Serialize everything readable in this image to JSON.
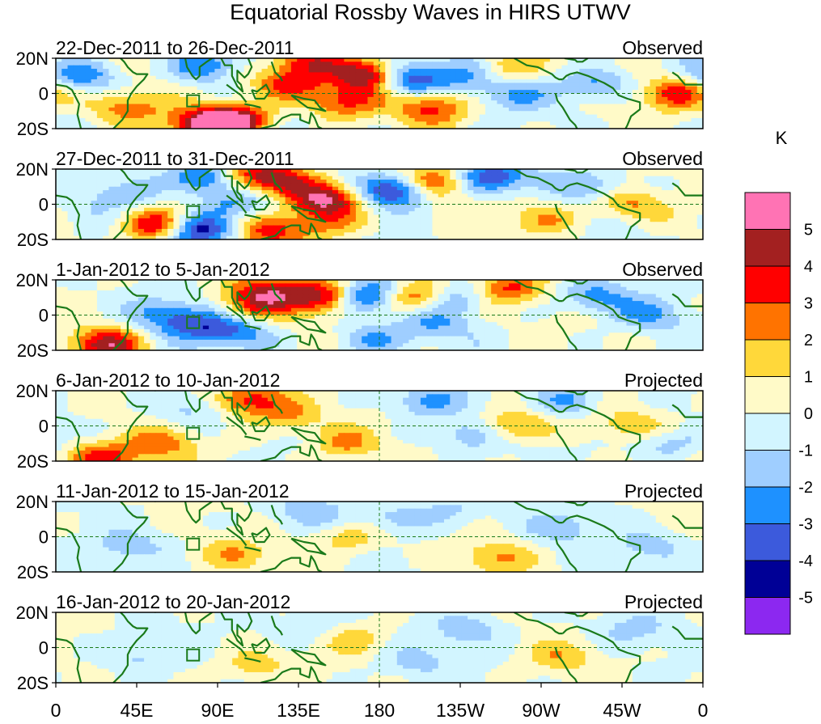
{
  "title": "Equatorial Rossby Waves in HIRS UTWV",
  "lat_labels": [
    "20N",
    "0",
    "20S"
  ],
  "lon_labels": [
    "0",
    "45E",
    "90E",
    "135E",
    "180",
    "135W",
    "90W",
    "45W",
    "0"
  ],
  "colorbar": {
    "unit": "K",
    "colors": [
      "#ff73b4",
      "#a32020",
      "#ff0000",
      "#ff7300",
      "#ffd83a",
      "#fffac8",
      "#d2f5ff",
      "#9fceff",
      "#1e91ff",
      "#3c5adc",
      "#000096",
      "#8c28f0"
    ],
    "tick_labels": [
      "5",
      "4",
      "3",
      "2",
      "1",
      "0",
      "-1",
      "-2",
      "-3",
      "-4",
      "-5"
    ]
  },
  "panels": [
    {
      "date_range": "22-Dec-2011 to 26-Dec-2011",
      "kind": "Observed",
      "amp": 1.0,
      "blobs": [
        [
          93,
          12,
          3.2
        ],
        [
          40,
          -8,
          2.5
        ],
        [
          160,
          -5,
          3.2
        ],
        [
          175,
          10,
          5.4
        ],
        [
          100,
          -15,
          4.6
        ],
        [
          130,
          5,
          3.2
        ],
        [
          195,
          8,
          -4.7
        ],
        [
          85,
          -18,
          5.6
        ],
        [
          88,
          14,
          -5.2
        ],
        [
          210,
          -8,
          3.4
        ],
        [
          232,
          12,
          -3.2
        ],
        [
          245,
          14,
          3.4
        ],
        [
          15,
          10,
          -3.0
        ],
        [
          255,
          0,
          -2.0
        ],
        [
          300,
          5,
          -2.6
        ],
        [
          345,
          0,
          3.5
        ],
        [
          140,
          18,
          3.2
        ]
      ]
    },
    {
      "date_range": "27-Dec-2011 to 31-Dec-2011",
      "kind": "Observed",
      "amp": 1.0,
      "blobs": [
        [
          150,
          3,
          5.3
        ],
        [
          125,
          14,
          3.4
        ],
        [
          108,
          17,
          3.0
        ],
        [
          58,
          -12,
          4.8
        ],
        [
          78,
          -15,
          -5.2
        ],
        [
          82,
          15,
          -4.0
        ],
        [
          190,
          8,
          -5.3
        ],
        [
          210,
          12,
          4.0
        ],
        [
          242,
          15,
          -4.2
        ],
        [
          120,
          -16,
          3.0
        ],
        [
          150,
          -10,
          2.5
        ],
        [
          100,
          0,
          -2.4
        ],
        [
          35,
          5,
          -1.5
        ],
        [
          270,
          -8,
          2.0
        ],
        [
          318,
          0,
          2.4
        ],
        [
          300,
          10,
          -1.8
        ]
      ]
    },
    {
      "date_range": "1-Jan-2012 to 5-Jan-2012",
      "kind": "Observed",
      "amp": 1.0,
      "blobs": [
        [
          150,
          10,
          4.7
        ],
        [
          120,
          15,
          3.2
        ],
        [
          110,
          6,
          3.0
        ],
        [
          173,
          10,
          -4.7
        ],
        [
          198,
          10,
          3.8
        ],
        [
          225,
          10,
          -2.2
        ],
        [
          250,
          15,
          3.0
        ],
        [
          28,
          -17,
          4.3
        ],
        [
          80,
          -6,
          -2.4
        ],
        [
          100,
          -10,
          -2.5
        ],
        [
          60,
          0,
          -2.3
        ],
        [
          175,
          -14,
          -2.0
        ],
        [
          210,
          -5,
          -1.8
        ],
        [
          300,
          10,
          -2.3
        ],
        [
          332,
          0,
          -1.8
        ]
      ]
    },
    {
      "date_range": "6-Jan-2012 to 10-Jan-2012",
      "kind": "Projected",
      "amp": 0.85,
      "blobs": [
        [
          108,
          15,
          4.0
        ],
        [
          130,
          5,
          2.0
        ],
        [
          25,
          -18,
          3.8
        ],
        [
          60,
          -10,
          2.2
        ],
        [
          160,
          -10,
          2.2
        ],
        [
          205,
          14,
          -2.2
        ],
        [
          230,
          -5,
          -2.0
        ],
        [
          255,
          0,
          2.8
        ],
        [
          285,
          15,
          -2.0
        ],
        [
          320,
          0,
          1.6
        ],
        [
          340,
          -10,
          -1.8
        ],
        [
          75,
          10,
          -1.5
        ]
      ]
    },
    {
      "date_range": "11-Jan-2012 to 15-Jan-2012",
      "kind": "Projected",
      "amp": 0.65,
      "blobs": [
        [
          100,
          -10,
          1.8
        ],
        [
          165,
          0,
          1.8
        ],
        [
          140,
          14,
          -1.6
        ],
        [
          185,
          10,
          -1.4
        ],
        [
          245,
          -12,
          2.0
        ],
        [
          280,
          5,
          -1.6
        ],
        [
          220,
          15,
          -1.4
        ],
        [
          40,
          -5,
          -1.4
        ],
        [
          330,
          -5,
          -1.4
        ]
      ]
    },
    {
      "date_range": "16-Jan-2012 to 20-Jan-2012",
      "kind": "Projected",
      "amp": 0.6,
      "blobs": [
        [
          110,
          -10,
          1.6
        ],
        [
          165,
          5,
          1.6
        ],
        [
          140,
          12,
          -1.4
        ],
        [
          230,
          10,
          -1.6
        ],
        [
          280,
          -5,
          1.6
        ],
        [
          200,
          -8,
          -1.3
        ],
        [
          320,
          10,
          -1.3
        ],
        [
          45,
          -5,
          -1.3
        ]
      ]
    }
  ]
}
